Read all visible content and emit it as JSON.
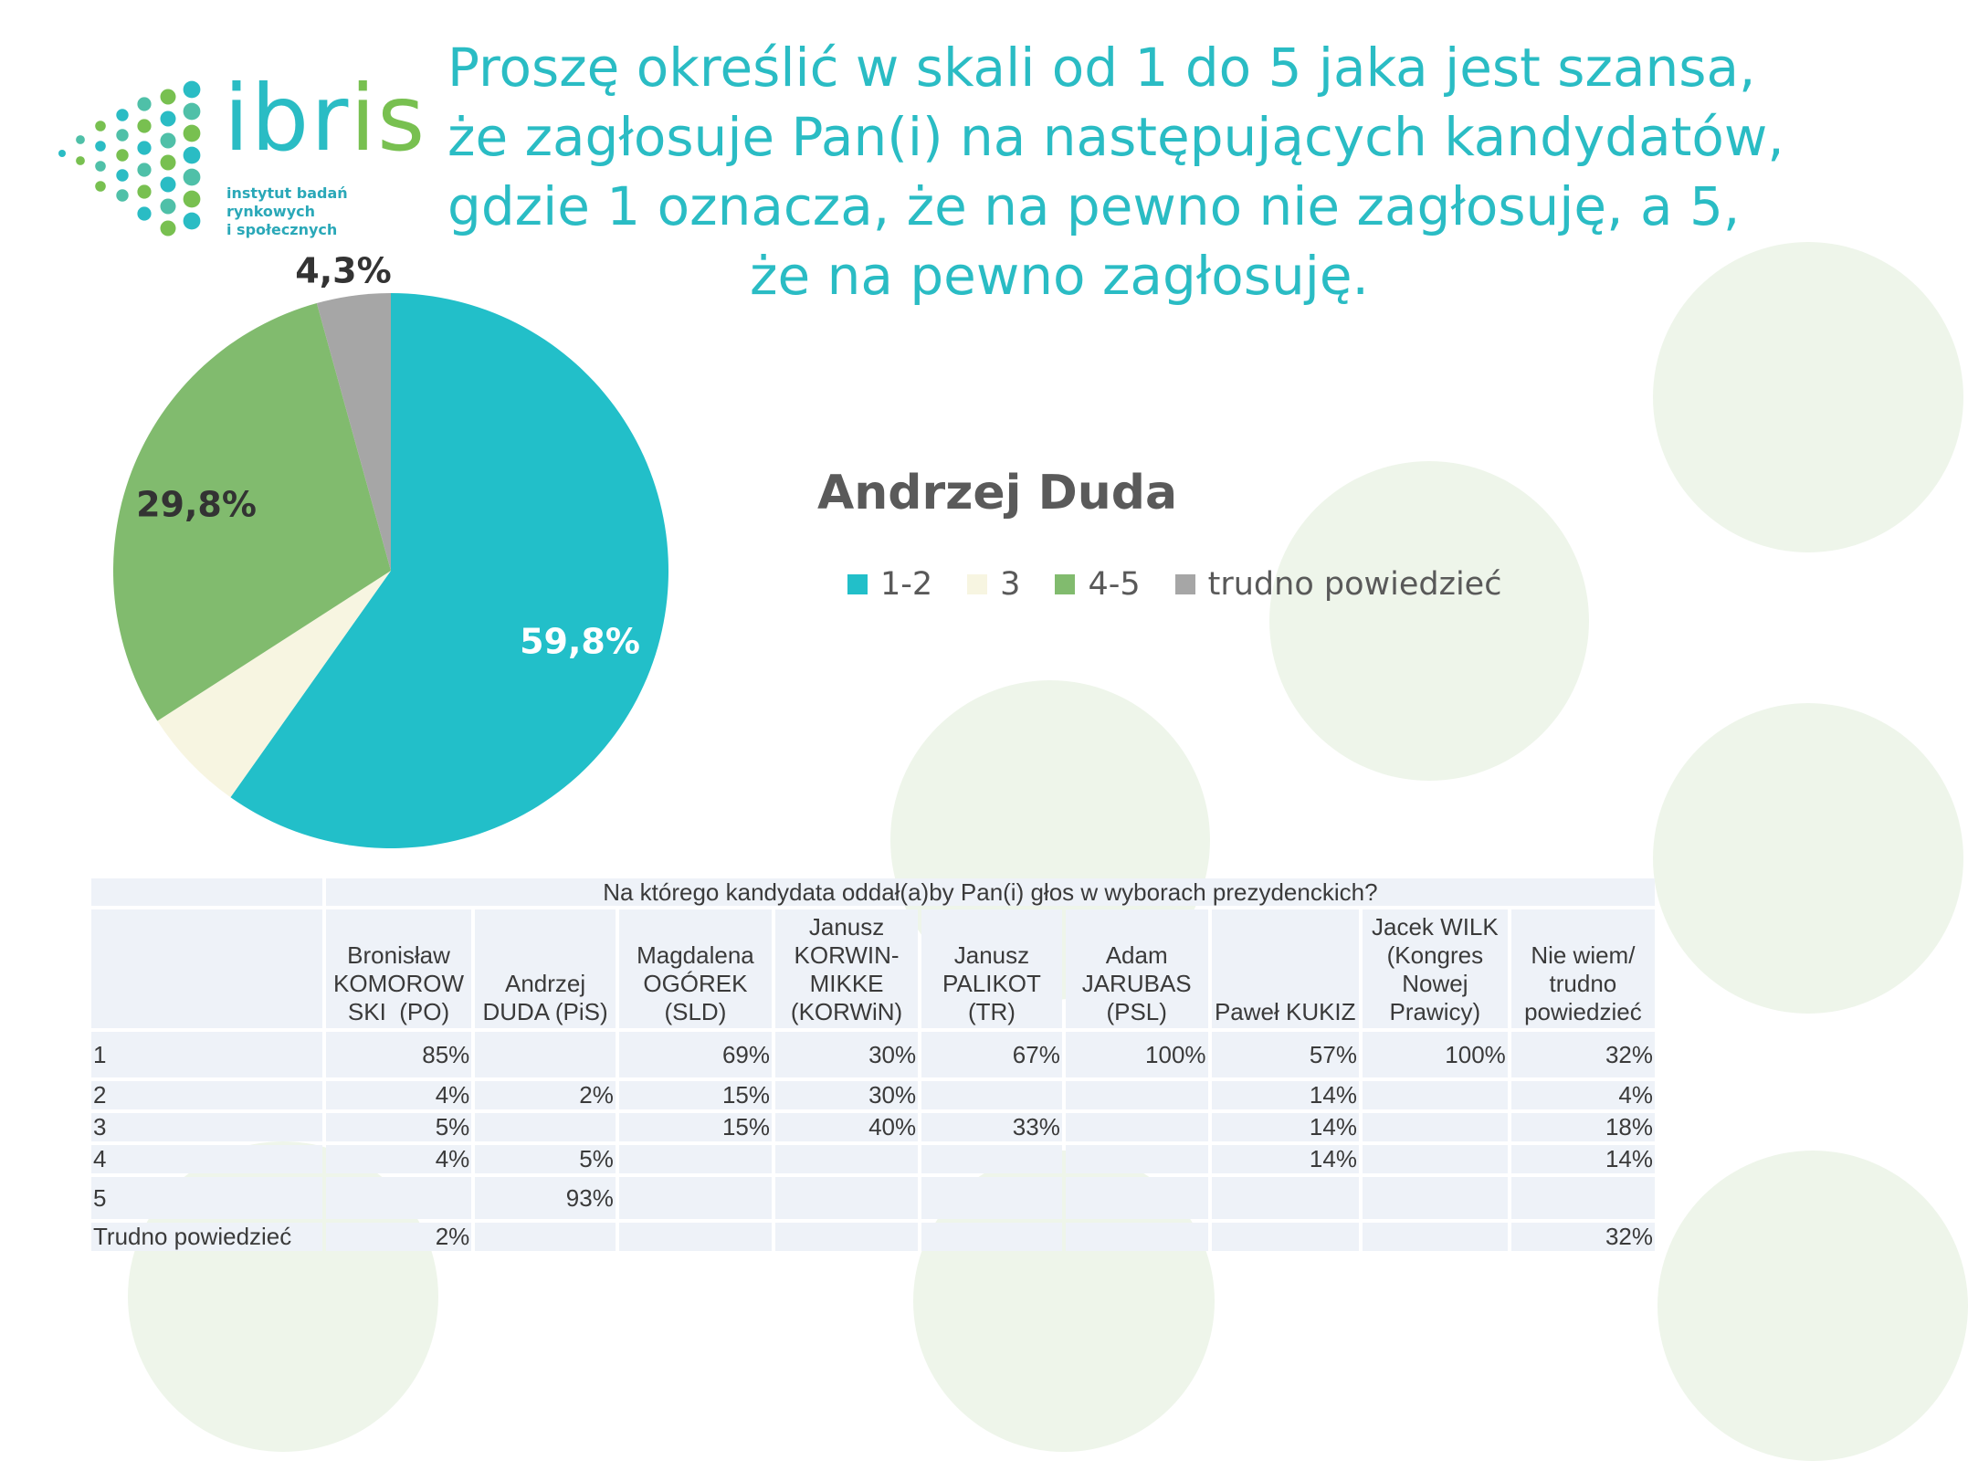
{
  "header": {
    "question_lines": [
      "Proszę określić w skali od 1 do 5 jaka jest szansa,",
      "że zagłosuje Pan(i) na następujących kandydatów,",
      "gdzie 1 oznacza, że na pewno nie zagłosuję, a 5,",
      "że na pewno zagłosuję."
    ]
  },
  "logo": {
    "word": "ibris",
    "tagline_1": "instytut badań rynkowych",
    "tagline_2": "i społecznych",
    "colors": {
      "teal": "#2abcc4",
      "green": "#78c050"
    }
  },
  "chart_data": {
    "type": "pie",
    "title": "Andrzej Duda",
    "categories": [
      "1-2",
      "3",
      "4-5",
      "trudno powiedzieć"
    ],
    "values": [
      59.8,
      6.1,
      29.8,
      4.3
    ],
    "labels": [
      "59,8%",
      "",
      "29,8%",
      "4,3%"
    ],
    "colors": [
      "#22bfc9",
      "#f7f5e1",
      "#81bb6e",
      "#a6a6a6"
    ],
    "legend_position": "right"
  },
  "table": {
    "caption": "Na którego kandydata oddał(a)by Pan(i) głos w wyborach prezydenckich?",
    "columns": [
      [
        "Bronisław",
        "KOMOROW",
        "SKI  (PO)"
      ],
      [
        "Andrzej",
        "DUDA (PiS)"
      ],
      [
        "Magdalena",
        "OGÓREK",
        "(SLD)"
      ],
      [
        "Janusz",
        "KORWIN-",
        "MIKKE",
        "(KORWiN)"
      ],
      [
        "Janusz",
        "PALIKOT",
        "(TR)"
      ],
      [
        "Adam",
        "JARUBAS",
        "(PSL)"
      ],
      [
        "Paweł KUKIZ"
      ],
      [
        "Jacek WILK",
        "(Kongres",
        "Nowej",
        "Prawicy)"
      ],
      [
        "Nie wiem/",
        "trudno",
        "powiedzieć"
      ]
    ],
    "rows": [
      {
        "label": "1",
        "cells": [
          "85%",
          "",
          "69%",
          "30%",
          "67%",
          "100%",
          "57%",
          "100%",
          "32%"
        ]
      },
      {
        "label": "2",
        "cells": [
          "4%",
          "2%",
          "15%",
          "30%",
          "",
          "",
          "14%",
          "",
          "4%"
        ]
      },
      {
        "label": "3",
        "cells": [
          "5%",
          "",
          "15%",
          "40%",
          "33%",
          "",
          "14%",
          "",
          "18%"
        ]
      },
      {
        "label": "4",
        "cells": [
          "4%",
          "5%",
          "",
          "",
          "",
          "",
          "14%",
          "",
          "14%"
        ]
      },
      {
        "label": "5",
        "cells": [
          "",
          "93%",
          "",
          "",
          "",
          "",
          "",
          "",
          ""
        ]
      },
      {
        "label": "Trudno powiedzieć",
        "cells": [
          "2%",
          "",
          "",
          "",
          "",
          "",
          "",
          "",
          "32%"
        ]
      }
    ]
  }
}
